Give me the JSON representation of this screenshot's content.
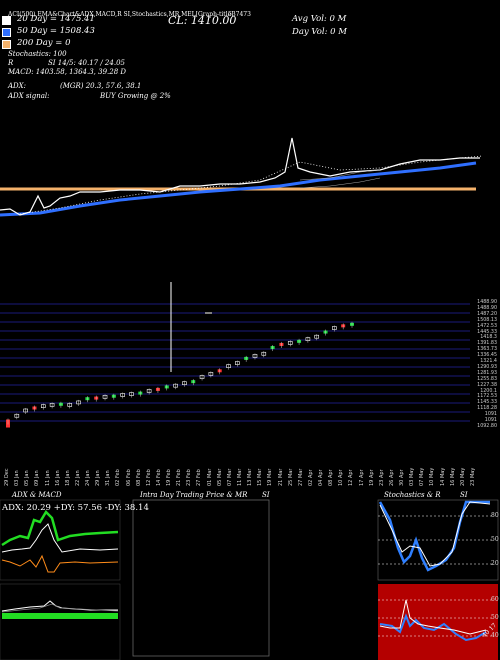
{
  "header": {
    "top_line": "ACI(500) EMA&Chart&ADX,MACD,R      SI,Stochastics,MR      MEL[Graph-title]",
    "ema20": "20  Day  = 1475.41",
    "ema50": "50  Day  = 1508.43",
    "ema200": "200  Day  = 0",
    "stochastics": "Stochastics: 100",
    "rsi_label": "R",
    "rsi_value": "SI 14/5: 40.17 / 24.05",
    "macd": "MACD: 1403.58,  1364.3,  39.28  D",
    "adx_label": "ADX:",
    "adx_mgr": "(MGR) 20.3,  57.6,  38.1",
    "adx_signal_label": "ADX  signal:",
    "adx_signal_value": "BUY Growing @ 2%",
    "close": "CL: 1410.00",
    "avg_vol": "Avg Vol: 0  M",
    "day_vol": "Day Vol: 0  M",
    "mid_code": "537473",
    "right_code": "MEL[VIRINCH] Mirant"
  },
  "colors": {
    "ema20": "#ffffff",
    "ema50": "#2f6fff",
    "ema200": "#f5b26b",
    "candle_up": "#22dd44",
    "candle_down": "#ff3333",
    "rsi_bg": "#b40000"
  },
  "price_axis": [
    "1488.90",
    "1488.90",
    "1487.20",
    "1508.13",
    "1472.53",
    "1445.33",
    "1418.3",
    "1391.83",
    "1363.73",
    "1336.45",
    "1321.4",
    "1290.93",
    "1281.93",
    "1255.83",
    "1227.38",
    "1200.1",
    "1172.53",
    "1145.33",
    "1118.28",
    "1091",
    "1091",
    "1092.80"
  ],
  "dates": [
    "29 Dec",
    "03 Jan",
    "05 Jan",
    "09 Jan",
    "11 Jan",
    "16 Jan",
    "18 Jan",
    "22 Jan",
    "24 Jan",
    "29 Jan",
    "31 Jan",
    "02 Feb",
    "06 Feb",
    "08 Feb",
    "12 Feb",
    "14 Feb",
    "19 Feb",
    "21 Feb",
    "23 Feb",
    "27 Feb",
    "01 Mar",
    "05 Mar",
    "07 Mar",
    "11 Mar",
    "13 Mar",
    "15 Mar",
    "19 Mar",
    "21 Mar",
    "25 Mar",
    "27 Mar",
    "02 Apr",
    "04 Apr",
    "08 Apr",
    "10 Apr",
    "12 Apr",
    "17 Apr",
    "19 Apr",
    "23 Apr",
    "26 Apr",
    "30 Apr",
    "03 May",
    "07 May",
    "10 May",
    "14 May",
    "16 May",
    "20 May",
    "23 May"
  ],
  "panels": {
    "adx_title": "ADX  & MACD",
    "adx_readout": "ADX: 20.29  +DY: 57.56  -DY: 38.14",
    "intraday_title": "Intra  Day Trading Price  & MR",
    "intraday_si": "SI",
    "stoch_title": "Stochastics & R",
    "stoch_si": "SI",
    "stoch_levels": [
      "80",
      "50",
      "20"
    ],
    "rsi_levels": [
      "60",
      "50",
      "40"
    ],
    "rsi_note": "40 17"
  },
  "chart_data": {
    "type": "candlestick",
    "title": "",
    "candles_close": [
      1098,
      1115,
      1132,
      1140,
      1146,
      1150,
      1152,
      1150,
      1158,
      1170,
      1172,
      1176,
      1178,
      1182,
      1185,
      1188,
      1195,
      1200,
      1208,
      1212,
      1220,
      1225,
      1240,
      1250,
      1260,
      1275,
      1285,
      1300,
      1308,
      1315,
      1335,
      1345,
      1350,
      1355,
      1362,
      1370,
      1385,
      1398,
      1405,
      1410
    ]
  }
}
